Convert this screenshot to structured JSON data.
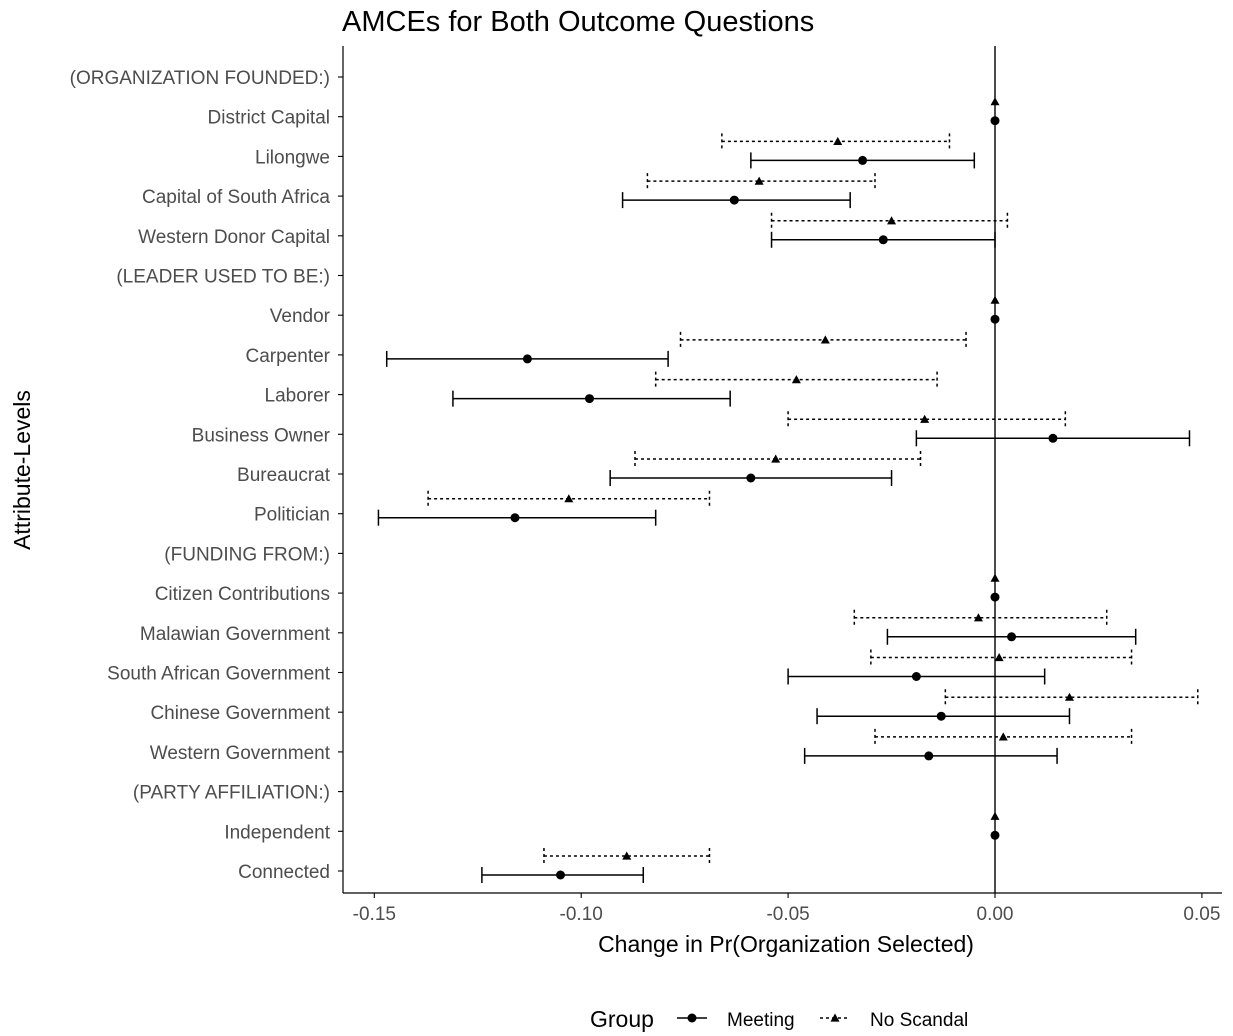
{
  "chart_data": {
    "type": "scatter",
    "subtype": "coefficient-plot-with-error-bars",
    "title": "AMCEs for Both Outcome Questions",
    "xlabel": "Change in Pr(Organization Selected)",
    "ylabel": "Attribute-Levels",
    "xlim": [
      -0.158,
      0.058
    ],
    "x_ticks": [
      -0.15,
      -0.1,
      -0.05,
      0.0,
      0.05
    ],
    "x_tick_labels": [
      "-0.15",
      "-0.10",
      "-0.05",
      "0.00",
      "0.05"
    ],
    "reference_line_x": 0,
    "grid": false,
    "legend_position": "bottom",
    "legend_title": "Group",
    "categories": [
      "(ORGANIZATION FOUNDED:)",
      "District Capital",
      "Lilongwe",
      "Capital of South Africa",
      "Western Donor Capital",
      "(LEADER USED TO BE:)",
      "Vendor",
      "Carpenter",
      "Laborer",
      "Business Owner",
      "Bureaucrat",
      "Politician",
      "(FUNDING FROM:)",
      "Citizen Contributions",
      "Malawian Government",
      "South African Government",
      "Chinese Government",
      "Western Government",
      "(PARTY AFFILIATION:)",
      "Independent",
      "Connected"
    ],
    "series": [
      {
        "name": "Meeting",
        "marker": "circle",
        "line_style": "solid",
        "points": [
          null,
          {
            "est": 0.0,
            "lo": null,
            "hi": null
          },
          {
            "est": -0.032,
            "lo": -0.059,
            "hi": -0.005
          },
          {
            "est": -0.063,
            "lo": -0.09,
            "hi": -0.035
          },
          {
            "est": -0.027,
            "lo": -0.054,
            "hi": 0.0
          },
          null,
          {
            "est": 0.0,
            "lo": null,
            "hi": null
          },
          {
            "est": -0.113,
            "lo": -0.147,
            "hi": -0.079
          },
          {
            "est": -0.098,
            "lo": -0.131,
            "hi": -0.064
          },
          {
            "est": 0.014,
            "lo": -0.019,
            "hi": 0.047
          },
          {
            "est": -0.059,
            "lo": -0.093,
            "hi": -0.025
          },
          {
            "est": -0.116,
            "lo": -0.149,
            "hi": -0.082
          },
          null,
          {
            "est": 0.0,
            "lo": null,
            "hi": null
          },
          {
            "est": 0.004,
            "lo": -0.026,
            "hi": 0.034
          },
          {
            "est": -0.019,
            "lo": -0.05,
            "hi": 0.012
          },
          {
            "est": -0.013,
            "lo": -0.043,
            "hi": 0.018
          },
          {
            "est": -0.016,
            "lo": -0.046,
            "hi": 0.015
          },
          null,
          {
            "est": 0.0,
            "lo": null,
            "hi": null
          },
          {
            "est": -0.105,
            "lo": -0.124,
            "hi": -0.085
          }
        ]
      },
      {
        "name": "No Scandal",
        "marker": "triangle",
        "line_style": "dashed",
        "points": [
          null,
          {
            "est": 0.0,
            "lo": null,
            "hi": null
          },
          {
            "est": -0.038,
            "lo": -0.066,
            "hi": -0.011
          },
          {
            "est": -0.057,
            "lo": -0.084,
            "hi": -0.029
          },
          {
            "est": -0.025,
            "lo": -0.054,
            "hi": 0.003
          },
          null,
          {
            "est": 0.0,
            "lo": null,
            "hi": null
          },
          {
            "est": -0.041,
            "lo": -0.076,
            "hi": -0.007
          },
          {
            "est": -0.048,
            "lo": -0.082,
            "hi": -0.014
          },
          {
            "est": -0.017,
            "lo": -0.05,
            "hi": 0.017
          },
          {
            "est": -0.053,
            "lo": -0.087,
            "hi": -0.018
          },
          {
            "est": -0.103,
            "lo": -0.137,
            "hi": -0.069
          },
          null,
          {
            "est": 0.0,
            "lo": null,
            "hi": null
          },
          {
            "est": -0.004,
            "lo": -0.034,
            "hi": 0.027
          },
          {
            "est": 0.001,
            "lo": -0.03,
            "hi": 0.033
          },
          {
            "est": 0.018,
            "lo": -0.012,
            "hi": 0.049
          },
          {
            "est": 0.002,
            "lo": -0.029,
            "hi": 0.033
          },
          null,
          {
            "est": 0.0,
            "lo": null,
            "hi": null
          },
          {
            "est": -0.089,
            "lo": -0.109,
            "hi": -0.069
          }
        ]
      }
    ],
    "colors": {
      "ink": "#000000",
      "tick_text": "#4d4d4d"
    }
  }
}
